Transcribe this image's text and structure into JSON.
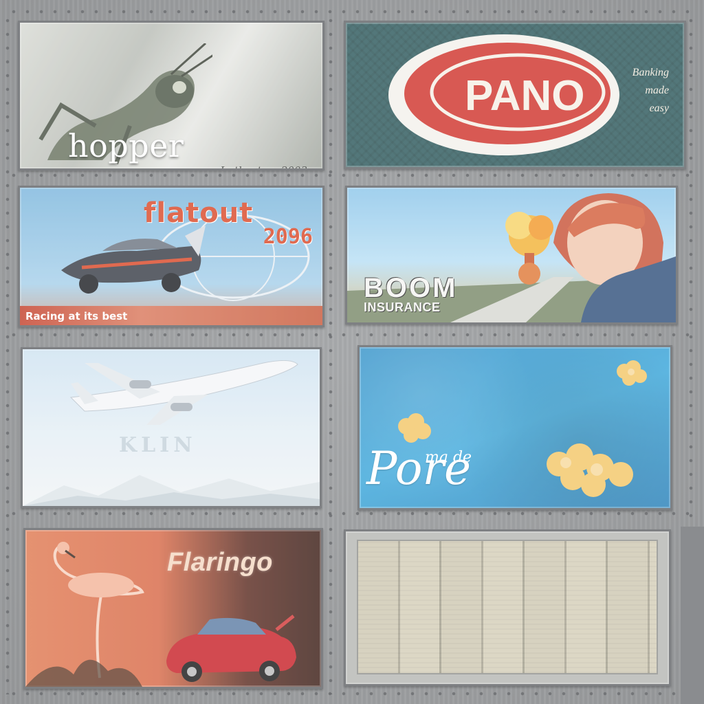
{
  "billboards": [
    {
      "id": "hopper",
      "title": "hopper",
      "subtitle": "In theaters 2003"
    },
    {
      "id": "pano",
      "title": "PANO",
      "side_lines": [
        "Banking",
        "made",
        "easy"
      ]
    },
    {
      "id": "flatout",
      "title": "flatout",
      "year": "2096",
      "strip_text": "Racing at its best"
    },
    {
      "id": "boom",
      "title": "BOOM",
      "subtitle": "INSURANCE"
    },
    {
      "id": "airline",
      "brand": "KLIN"
    },
    {
      "id": "pore",
      "prefix": "ma de",
      "title": "Pore"
    },
    {
      "id": "flaringo",
      "title": "Flaringo"
    },
    {
      "id": "blank",
      "label": ""
    }
  ],
  "colors": {
    "metal": "#9fa1a3",
    "rivet": "#6b6d70",
    "flatout_red": "#d94a2a",
    "pano_red": "#d0352e",
    "pore_blue": "#3aa6da",
    "flaringo_orange": "#e07a52"
  },
  "icons": [
    "grasshopper",
    "futuristic-car",
    "explosion",
    "airplane",
    "flamingo",
    "sports-car"
  ]
}
